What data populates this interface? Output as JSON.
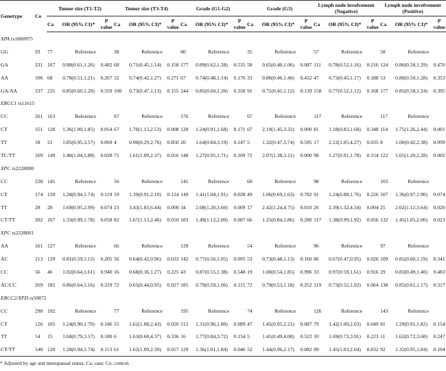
{
  "header": {
    "genotype": "Genotype",
    "co": "Co",
    "groups": [
      "Tumor size (T1-T2)",
      "Tumor size (T3-T4)",
      "Grade (G1-G2)",
      "Grade (G3)",
      "Lymph node involvement (Negative)",
      "Lymph node involvement (Positive)"
    ],
    "subheaders": [
      "Ca",
      "OR (95% CI)*",
      "P value"
    ]
  },
  "sections": [
    {
      "gene": "XPA",
      "snp": "rs1800975",
      "rows": [
        {
          "genotype": "GG",
          "co": "93",
          "groups": [
            [
              "77",
              "Reference"
            ],
            [
              "38",
              "Reference"
            ],
            [
              "80",
              "Reference"
            ],
            [
              "35",
              "Reference"
            ],
            [
              "57",
              "Reference"
            ],
            [
              "58",
              "Reference"
            ]
          ]
        },
        {
          "genotype": "GA",
          "co": "231",
          "groups": [
            [
              "167",
              "0.88(0.61,1.26)",
              "0.482"
            ],
            [
              "68",
              "0.71(0.45,1.14)",
              "0.158"
            ],
            [
              "177",
              "0.89(0.62,1.28)",
              "0.535"
            ],
            [
              "58",
              "0.65(0.40,1.06)",
              "0.087"
            ],
            [
              "111",
              "0.78(0.52,1.16)",
              "0.216"
            ],
            [
              "124",
              "0.86(0.58,1.29)",
              "0.470"
            ]
          ]
        },
        {
          "genotype": "AA",
          "co": "106",
          "groups": [
            [
              "68",
              "0.78(0.51,1.21)",
              "0.267"
            ],
            [
              "32",
              "0.74(0.42,1.27)",
              "0.271"
            ],
            [
              "67",
              "0.74(0.48,1.14)",
              "0.176"
            ],
            [
              "33",
              "0.80(0.46,1.40)",
              "0.432"
            ],
            [
              "47",
              "0.73(0.45,1.17)",
              "0.188"
            ],
            [
              "53",
              "0.80(0.50,1.28)",
              "0.353"
            ]
          ]
        },
        {
          "genotype": "GA/AA",
          "co": "337",
          "groups": [
            [
              "235",
              "0.85(0.60,1.20)",
              "0.359"
            ],
            [
              "100",
              "0.73(0.47,1.13)",
              "0.155"
            ],
            [
              "244",
              "0.85(0.60,1.20)",
              "0.350"
            ],
            [
              "91",
              "0.71(0.45,1.12)",
              "0.139"
            ],
            [
              "158",
              "0.77(0.52,1.12)",
              "0.168"
            ],
            [
              "177",
              "0.85(0.58,1.24)",
              "0.395"
            ]
          ]
        }
      ]
    },
    {
      "gene": "ERCC1",
      "snp": "rs11615",
      "rows": [
        {
          "genotype": "CC",
          "co": "261",
          "groups": [
            [
              "163",
              "Reference"
            ],
            [
              "67",
              "Reference"
            ],
            [
              "176",
              "Reference"
            ],
            [
              "67",
              "Reference"
            ],
            [
              "117",
              "Reference"
            ],
            [
              "117",
              "Reference"
            ]
          ]
        },
        {
          "genotype": "CT",
          "co": "151",
          "groups": [
            [
              "128",
              "1.36(1.00,1.85)",
              "0.054"
            ],
            [
              "67",
              "1.70(1.15,2.53)",
              "0.008"
            ],
            [
              "128",
              "1.24(0.91,1.68)",
              "0.171"
            ],
            [
              "67",
              "2.19(1.45,3.32)",
              "0.000"
            ],
            [
              "81",
              "1.18(0.83,1.68)",
              "0.348"
            ],
            [
              "114",
              "1.75(1.26,2.44)",
              "0.001"
            ]
          ]
        },
        {
          "genotype": "TT",
          "co": "18",
          "groups": [
            [
              "21",
              "1.85(0.95,3.57)",
              "0.069"
            ],
            [
              "4",
              "0.90(0.29,2.76)",
              "0.850"
            ],
            [
              "20",
              "1.64(0.84,3.19)",
              "0.147"
            ],
            [
              "5",
              "1.32(0.47,3.74)",
              "0.595"
            ],
            [
              "17",
              "2.12(1.05,4.27)",
              "0.035"
            ],
            [
              "8",
              "1.00(0.42,2.38)",
              "0.999"
            ]
          ]
        },
        {
          "genotype": "TC/TT",
          "co": "169",
          "groups": [
            [
              "149",
              "1.40(1.04,1.88)",
              "0.028"
            ],
            [
              "71",
              "1.61(1.09,2.37)",
              "0.016"
            ],
            [
              "148",
              "1.27(0.95,1.71)",
              "0.109"
            ],
            [
              "72",
              "2.07(1.38,3.11)",
              "0.000"
            ],
            [
              "98",
              "1.27(0.91,1.78)",
              "0.154"
            ],
            [
              "122",
              "1.65(1.20,2.28)",
              "0.002"
            ]
          ]
        }
      ]
    },
    {
      "gene": "XPC",
      "snp": "rs2228000",
      "rows": [
        {
          "genotype": "CC",
          "co": "228",
          "groups": [
            [
              "145",
              "Reference"
            ],
            [
              "56",
              "Reference"
            ],
            [
              "141",
              "Reference"
            ],
            [
              "60",
              "Reference"
            ],
            [
              "98",
              "Reference"
            ],
            [
              "103",
              "Reference"
            ]
          ]
        },
        {
          "genotype": "CT",
          "co": "174",
          "groups": [
            [
              "139",
              "1.28(0.94,1.74)",
              "0.119"
            ],
            [
              "59",
              "1.39(0.91,2.10)",
              "0.124"
            ],
            [
              "149",
              "1.41(1.04,1.91)",
              "0.028"
            ],
            [
              "49",
              "1.06(0.69,1.63)",
              "0.782"
            ],
            [
              "91",
              "1.24(0.88,1.76)",
              "0.226"
            ],
            [
              "107",
              "1.36(0.97,1.90)",
              "0.074"
            ]
          ]
        },
        {
          "genotype": "TT",
          "co": "28",
          "groups": [
            [
              "28",
              "1.69(0.95,2.99)",
              "0.074"
            ],
            [
              "23",
              "3.43(1.83,6.44)",
              "0.000"
            ],
            [
              "34",
              "2.08(1.20,3.60)",
              "0.009"
            ],
            [
              "17",
              "2.42(1.24,4.75)",
              "0.010"
            ],
            [
              "26",
              "2.39(1.32,4.34)",
              "0.004"
            ],
            [
              "25",
              "2.02(1.12,3.64)",
              "0.020"
            ]
          ]
        },
        {
          "genotype": "CT/TT",
          "co": "202",
          "groups": [
            [
              "167",
              "1.33(0.99,1.78)",
              "0.058"
            ],
            [
              "82",
              "1.67(1.13,2.46)",
              "0.010"
            ],
            [
              "183",
              "1.49(1.12,2.00)",
              "0.007"
            ],
            [
              "66",
              "1.25(0.84,1.86)",
              "0.280"
            ],
            [
              "117",
              "1.38(0.99,1.92)",
              "0.056"
            ],
            [
              "132",
              "1.45(1.05,2.00)",
              "0.023"
            ]
          ]
        }
      ]
    },
    {
      "gene": "XPC",
      "snp": "rs2228001",
      "rows": [
        {
          "genotype": "AA",
          "co": "161",
          "groups": [
            [
              "127",
              "Reference"
            ],
            [
              "66",
              "Reference"
            ],
            [
              "139",
              "Reference"
            ],
            [
              "54",
              "Reference"
            ],
            [
              "96",
              "Reference"
            ],
            [
              "97",
              "Reference"
            ]
          ]
        },
        {
          "genotype": "AC",
          "co": "213",
          "groups": [
            [
              "139",
              "0.81(0.59,1.12)",
              "0.205"
            ],
            [
              "56",
              "0.64(0.42,0.96)",
              "0.033"
            ],
            [
              "142",
              "0.77(0.56,1.05)",
              "0.095"
            ],
            [
              "53",
              "0.73(0.48,1.13)",
              "0.160"
            ],
            [
              "86",
              "0.67(0.47,0.95)",
              "0.026"
            ],
            [
              "109",
              "0.85(0.60,1.19)",
              "0.341"
            ]
          ]
        },
        {
          "genotype": "CC",
          "co": "56",
          "groups": [
            [
              "46",
              "1.02(0.64,1.61)",
              "0.940"
            ],
            [
              "16",
              "0.68(0.36,1.27)",
              "0.225"
            ],
            [
              "43",
              "0.87(0.55,1.38)",
              "0.548"
            ],
            [
              "19",
              "1.00(0.54,1.85)",
              "0.996"
            ],
            [
              "33",
              "0.97(0.59,1.61)",
              "0.916"
            ],
            [
              "29",
              "0.83(0.49,1.40)",
              "0.483"
            ]
          ]
        },
        {
          "genotype": "AC/CC",
          "co": "269",
          "groups": [
            [
              "185",
              "0.86(0.64,1.16)",
              "0.319"
            ],
            [
              "72",
              "0.65(0.44,0.95)",
              "0.027"
            ],
            [
              "185",
              "0.79(0.59,1.06)",
              "0.115"
            ],
            [
              "72",
              "0.79(0.53,1.18)",
              "0.252"
            ],
            [
              "119",
              "0.73(0.52,1.02)",
              "0.064"
            ],
            [
              "138",
              "0.85(0.61,1.17)",
              "0.317"
            ]
          ]
        }
      ]
    },
    {
      "gene": "ERCC2/XPD",
      "snp": "rs50872",
      "rows": [
        {
          "genotype": "CC",
          "co": "290",
          "groups": [
            [
              "192",
              "Reference"
            ],
            [
              "77",
              "Reference"
            ],
            [
              "195",
              "Reference"
            ],
            [
              "74",
              "Reference"
            ],
            [
              "126",
              "Reference"
            ],
            [
              "143",
              "Reference"
            ]
          ]
        },
        {
          "genotype": "CT",
          "co": "126",
          "groups": [
            [
              "105",
              "1.24(0.90,1.70)",
              "0.186"
            ],
            [
              "55",
              "1.62(1.08,2.43)",
              "0.020"
            ],
            [
              "113",
              "1.31(0.96,1.80)",
              "0.089"
            ],
            [
              "47",
              "1.45(0.95,2.21)",
              "0.087"
            ],
            [
              "79",
              "1.42(1.00,2.03)",
              "0.049"
            ],
            [
              "81",
              "1.29(0.91,1.82)",
              "0.154"
            ]
          ]
        },
        {
          "genotype": "TT",
          "co": "14",
          "groups": [
            [
              "15",
              "1.68(0.79,3.57)",
              "0.180"
            ],
            [
              "6",
              "1.63(0.60,4.37)",
              "0.336"
            ],
            [
              "16",
              "1.77(0.84,3.72)",
              "0.134"
            ],
            [
              "5",
              "1.41(0.49,4.08)",
              "0.522"
            ],
            [
              "10",
              "1.69(0.73,3.91)",
              "0.223"
            ],
            [
              "11",
              "1.62(0.72,3.68)",
              "0.247"
            ]
          ]
        },
        {
          "genotype": "CT/TT",
          "co": "140",
          "groups": [
            [
              "120",
              "1.28(0.94,1.74)",
              "0.113"
            ],
            [
              "61",
              "1.62(1.09,2.39)",
              "0.017"
            ],
            [
              "129",
              "1.36(1.01,1.84)",
              "0.046"
            ],
            [
              "52",
              "1.44(0.96,2.17)",
              "0.082"
            ],
            [
              "89",
              "1.45(1.03,2.04)",
              "0.032"
            ],
            [
              "92",
              "1.32(0.95,1.84)",
              "0.104"
            ]
          ]
        }
      ]
    }
  ],
  "footnote": "* Adjusted by age and menopausal status; Ca, case; Co, control."
}
